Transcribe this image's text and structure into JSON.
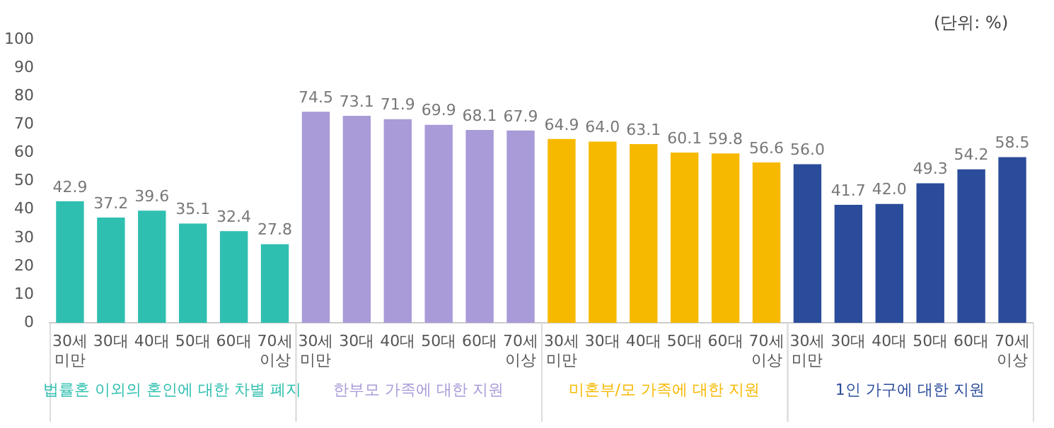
{
  "chart_data": {
    "type": "bar",
    "categories": [
      "30세\n미만",
      "30대",
      "40대",
      "50대",
      "60대",
      "70세\n이상",
      "30세\n미만",
      "30대",
      "40대",
      "50대",
      "60대",
      "70세\n이상",
      "30세\n미만",
      "30대",
      "40대",
      "50대",
      "60대",
      "70세\n이상",
      "30세\n미만",
      "30대",
      "40대",
      "50대",
      "60대",
      "70세\n이상"
    ],
    "series": [
      {
        "name": "법률혼 이외의 혼인에 대한 차별 폐지",
        "color": "#2fbfb0",
        "values": [
          42.9,
          37.2,
          39.6,
          35.1,
          32.4,
          27.8,
          null,
          null,
          null,
          null,
          null,
          null,
          null,
          null,
          null,
          null,
          null,
          null,
          null,
          null,
          null,
          null,
          null,
          null
        ],
        "value_labels": [
          "42.9",
          "37.2",
          "39.6",
          "35.1",
          "32.4",
          "27.8",
          null,
          null,
          null,
          null,
          null,
          null,
          null,
          null,
          null,
          null,
          null,
          null,
          null,
          null,
          null,
          null,
          null,
          null
        ]
      },
      {
        "name": "한부모 가족에 대한 지원",
        "color": "#a99ad8",
        "values": [
          null,
          null,
          null,
          null,
          null,
          null,
          74.5,
          73.1,
          71.9,
          69.9,
          68.1,
          67.9,
          null,
          null,
          null,
          null,
          null,
          null,
          null,
          null,
          null,
          null,
          null,
          null
        ],
        "value_labels": [
          null,
          null,
          null,
          null,
          null,
          null,
          "74.5",
          "73.1",
          "71.9",
          "69.9",
          "68.1",
          "67.9",
          null,
          null,
          null,
          null,
          null,
          null,
          null,
          null,
          null,
          null,
          null,
          null
        ]
      },
      {
        "name": "미혼부/모 가족에 대한 지원",
        "color": "#f7b900",
        "values": [
          null,
          null,
          null,
          null,
          null,
          null,
          null,
          null,
          null,
          null,
          null,
          null,
          64.9,
          64.0,
          63.1,
          60.1,
          59.8,
          56.6,
          null,
          null,
          null,
          null,
          null,
          null
        ],
        "value_labels": [
          null,
          null,
          null,
          null,
          null,
          null,
          null,
          null,
          null,
          null,
          null,
          null,
          "64.9",
          "64.0",
          "63.1",
          "60.1",
          "59.8",
          "56.6",
          null,
          null,
          null,
          null,
          null,
          null
        ]
      },
      {
        "name": "1인 가구에 대한 지원",
        "color": "#2b4c9b",
        "values": [
          null,
          null,
          null,
          null,
          null,
          null,
          null,
          null,
          null,
          null,
          null,
          null,
          null,
          null,
          null,
          null,
          null,
          null,
          56.0,
          41.7,
          42.0,
          49.3,
          54.2,
          58.5
        ],
        "value_labels": [
          null,
          null,
          null,
          null,
          null,
          null,
          null,
          null,
          null,
          null,
          null,
          null,
          null,
          null,
          null,
          null,
          null,
          null,
          "56.0",
          "41.7",
          "42.0",
          "49.3",
          "54.2",
          "58.5"
        ]
      }
    ],
    "ylim": [
      0,
      100
    ],
    "yticks": [
      0,
      10,
      20,
      30,
      40,
      50,
      60,
      70,
      80,
      90,
      100
    ],
    "grid": false,
    "legend": false,
    "annotations": [
      "(단위: %)"
    ]
  }
}
